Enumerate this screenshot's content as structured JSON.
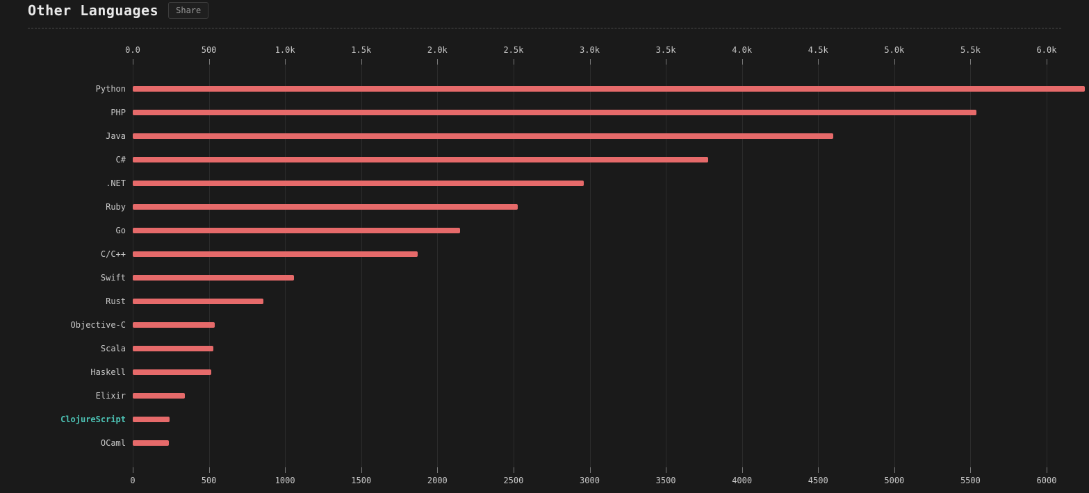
{
  "header": {
    "title": "Other Languages",
    "share_label": "Share"
  },
  "chart_data": {
    "type": "bar",
    "orientation": "horizontal",
    "title": "Other Languages",
    "categories": [
      "Python",
      "PHP",
      "Java",
      "C#",
      ".NET",
      "Ruby",
      "Go",
      "C/C++",
      "Swift",
      "Rust",
      "Objective-C",
      "Scala",
      "Haskell",
      "Elixir",
      "ClojureScript",
      "OCaml"
    ],
    "values": [
      6250,
      5540,
      4600,
      3780,
      2960,
      2530,
      2150,
      1870,
      1060,
      860,
      540,
      530,
      515,
      340,
      240,
      235
    ],
    "highlighted_category": "ClojureScript",
    "xlim": [
      0,
      6000
    ],
    "tick_values": [
      0,
      500,
      1000,
      1500,
      2000,
      2500,
      3000,
      3500,
      4000,
      4500,
      5000,
      5500,
      6000
    ],
    "top_axis_ticks": [
      "0.0",
      "500",
      "1.0k",
      "1.5k",
      "2.0k",
      "2.5k",
      "3.0k",
      "3.5k",
      "4.0k",
      "4.5k",
      "5.0k",
      "5.5k",
      "6.0k"
    ],
    "bottom_axis_ticks": [
      "0",
      "500",
      "1000",
      "1500",
      "2000",
      "2500",
      "3000",
      "3500",
      "4000",
      "4500",
      "5000",
      "5500",
      "6000"
    ],
    "grid": true,
    "legend": "none",
    "bar_color": "#e66a6a",
    "highlight_color": "#4dc3b5",
    "background_color": "#1a1a1a"
  }
}
